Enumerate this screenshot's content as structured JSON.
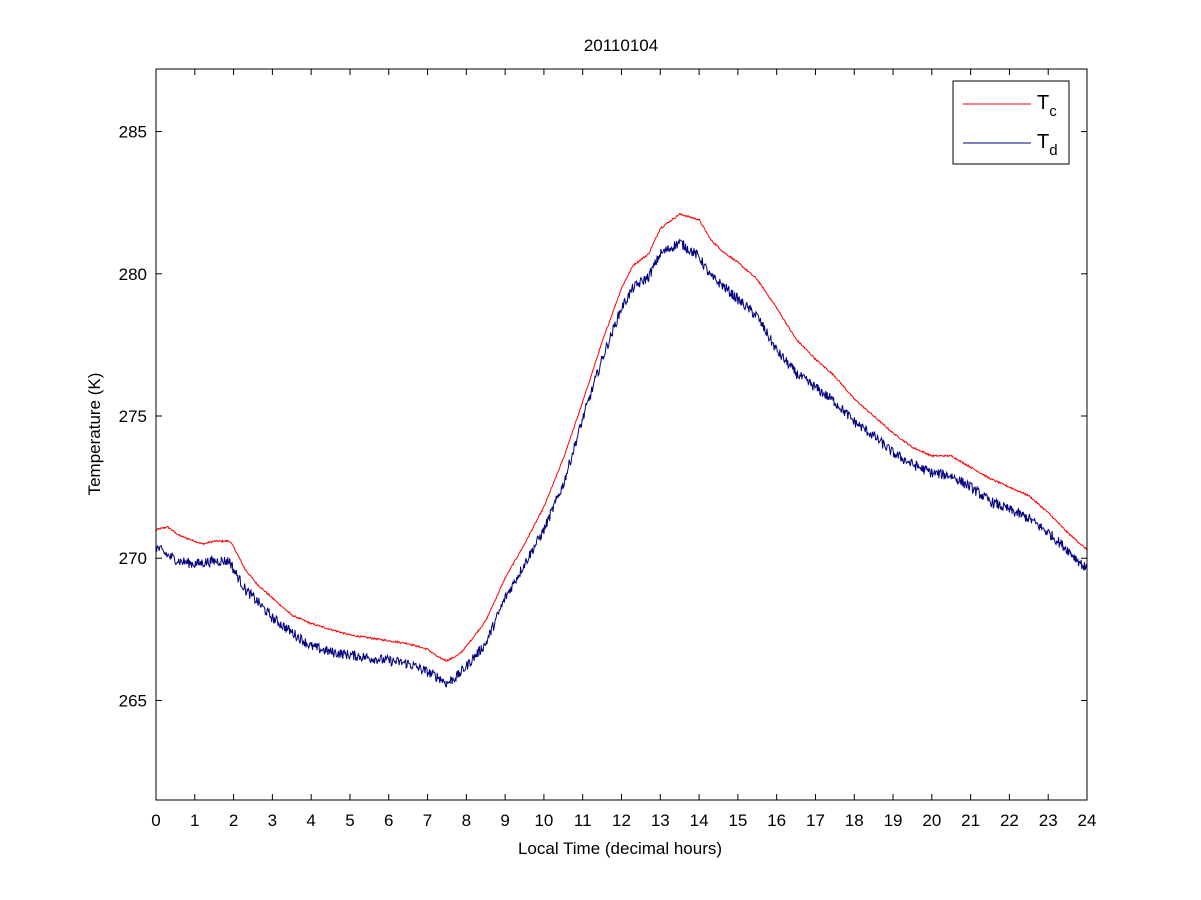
{
  "chart_data": {
    "type": "line",
    "title": "20110104",
    "xlabel": "Local Time (decimal hours)",
    "ylabel": "Temperature (K)",
    "xlim": [
      0,
      24
    ],
    "ylim": [
      261.5,
      287.2
    ],
    "xticks": [
      0,
      1,
      2,
      3,
      4,
      5,
      6,
      7,
      8,
      9,
      10,
      11,
      12,
      13,
      14,
      15,
      16,
      17,
      18,
      19,
      20,
      21,
      22,
      23,
      24
    ],
    "yticks": [
      265,
      270,
      275,
      280,
      285
    ],
    "grid": false,
    "legend_position": "top-right",
    "series": [
      {
        "name": "T_c",
        "legend_main": "T",
        "legend_sub": "c",
        "color": "#ff0000",
        "noise": 0.03,
        "points": [
          [
            0,
            271.0
          ],
          [
            0.3,
            271.1
          ],
          [
            0.6,
            270.8
          ],
          [
            1,
            270.6
          ],
          [
            1.2,
            270.5
          ],
          [
            1.5,
            270.6
          ],
          [
            1.9,
            270.6
          ],
          [
            2.0,
            270.4
          ],
          [
            2.3,
            269.6
          ],
          [
            2.6,
            269.1
          ],
          [
            3,
            268.6
          ],
          [
            3.5,
            268.0
          ],
          [
            4,
            267.7
          ],
          [
            4.5,
            267.5
          ],
          [
            5,
            267.3
          ],
          [
            5.5,
            267.2
          ],
          [
            6,
            267.1
          ],
          [
            6.5,
            267.0
          ],
          [
            7,
            266.8
          ],
          [
            7.3,
            266.5
          ],
          [
            7.5,
            266.4
          ],
          [
            7.8,
            266.6
          ],
          [
            8,
            266.9
          ],
          [
            8.5,
            267.8
          ],
          [
            9,
            269.3
          ],
          [
            9.5,
            270.5
          ],
          [
            10,
            271.8
          ],
          [
            10.5,
            273.5
          ],
          [
            11,
            275.5
          ],
          [
            11.5,
            277.6
          ],
          [
            12,
            279.5
          ],
          [
            12.3,
            280.3
          ],
          [
            12.7,
            280.7
          ],
          [
            13,
            281.6
          ],
          [
            13.5,
            282.1
          ],
          [
            14,
            281.9
          ],
          [
            14.3,
            281.2
          ],
          [
            14.6,
            280.8
          ],
          [
            15,
            280.4
          ],
          [
            15.5,
            279.8
          ],
          [
            16,
            278.8
          ],
          [
            16.5,
            277.7
          ],
          [
            17,
            277.0
          ],
          [
            17.5,
            276.4
          ],
          [
            18,
            275.6
          ],
          [
            18.5,
            275.0
          ],
          [
            19,
            274.4
          ],
          [
            19.5,
            273.9
          ],
          [
            20,
            273.6
          ],
          [
            20.5,
            273.6
          ],
          [
            21,
            273.2
          ],
          [
            21.5,
            272.8
          ],
          [
            22,
            272.5
          ],
          [
            22.5,
            272.2
          ],
          [
            23,
            271.6
          ],
          [
            23.5,
            270.9
          ],
          [
            24,
            270.3
          ]
        ]
      },
      {
        "name": "T_d",
        "legend_main": "T",
        "legend_sub": "d",
        "color": "#000080",
        "noise": 0.18,
        "points": [
          [
            0,
            270.4
          ],
          [
            0.3,
            270.1
          ],
          [
            0.6,
            269.9
          ],
          [
            1,
            269.8
          ],
          [
            1.5,
            269.9
          ],
          [
            1.9,
            269.9
          ],
          [
            2.0,
            269.6
          ],
          [
            2.3,
            268.9
          ],
          [
            2.6,
            268.5
          ],
          [
            3,
            267.9
          ],
          [
            3.5,
            267.4
          ],
          [
            4,
            266.9
          ],
          [
            4.5,
            266.7
          ],
          [
            5,
            266.6
          ],
          [
            5.5,
            266.5
          ],
          [
            6,
            266.4
          ],
          [
            6.5,
            266.3
          ],
          [
            7,
            266.0
          ],
          [
            7.3,
            265.8
          ],
          [
            7.5,
            265.6
          ],
          [
            7.8,
            265.9
          ],
          [
            8,
            266.2
          ],
          [
            8.5,
            267.0
          ],
          [
            9,
            268.6
          ],
          [
            9.5,
            269.8
          ],
          [
            10,
            271.0
          ],
          [
            10.5,
            272.6
          ],
          [
            11,
            274.9
          ],
          [
            11.5,
            277.0
          ],
          [
            12,
            278.8
          ],
          [
            12.3,
            279.5
          ],
          [
            12.7,
            279.9
          ],
          [
            13,
            280.7
          ],
          [
            13.5,
            281.1
          ],
          [
            14,
            280.6
          ],
          [
            14.3,
            279.9
          ],
          [
            14.6,
            279.6
          ],
          [
            15,
            279.1
          ],
          [
            15.5,
            278.5
          ],
          [
            16,
            277.3
          ],
          [
            16.5,
            276.5
          ],
          [
            17,
            276.0
          ],
          [
            17.5,
            275.5
          ],
          [
            18,
            274.8
          ],
          [
            18.5,
            274.3
          ],
          [
            19,
            273.7
          ],
          [
            19.5,
            273.3
          ],
          [
            20,
            273.0
          ],
          [
            20.5,
            272.9
          ],
          [
            21,
            272.5
          ],
          [
            21.5,
            272.0
          ],
          [
            22,
            271.7
          ],
          [
            22.5,
            271.4
          ],
          [
            23,
            270.9
          ],
          [
            23.5,
            270.3
          ],
          [
            24,
            269.6
          ]
        ]
      }
    ]
  }
}
